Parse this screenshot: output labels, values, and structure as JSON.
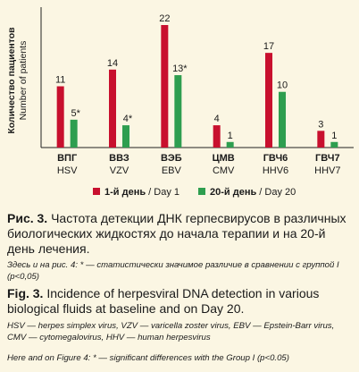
{
  "chart_data": {
    "type": "bar",
    "ylabel_ru": "Количество пациентов",
    "ylabel_en": "Number of patients",
    "categories_ru": [
      "ВПГ",
      "ВВЗ",
      "ВЭБ",
      "ЦМВ",
      "ГВЧ6",
      "ГВЧ7"
    ],
    "categories_en": [
      "HSV",
      "VZV",
      "EBV",
      "CMV",
      "HHV6",
      "HHV7"
    ],
    "series": [
      {
        "name_ru": "1-й день",
        "name_en": "Day 1",
        "color": "#c8102e",
        "values": [
          11,
          14,
          22,
          4,
          17,
          3
        ],
        "labels": [
          "11",
          "14",
          "22",
          "4",
          "17",
          "3"
        ]
      },
      {
        "name_ru": "20-й день",
        "name_en": "Day 20",
        "color": "#2e9e4f",
        "values": [
          5,
          4,
          13,
          1,
          10,
          1
        ],
        "labels": [
          "5*",
          "4*",
          "13*",
          "1",
          "10",
          "1"
        ]
      }
    ],
    "ylim": [
      0,
      22
    ],
    "grid": false,
    "legend_position": "bottom"
  },
  "caption": {
    "ru_label": "Рис. 3.",
    "ru_text": " Частота детекции ДНК герпесвирусов в различных биологических жидкостях до начала терапии и на 20-й день лечения.",
    "ru_note": "Здесь и на рис. 4: * — статистически значимое различие в сравнении с группой I (р<0,05)",
    "en_label": "Fig. 3.",
    "en_text": " Incidence of herpesviral DNA detection in various biological fluids at baseline and on Day 20.",
    "en_note1": "HSV — herpes simplex virus, VZV — varicella zoster virus, EBV — Epstein-Barr virus, CMV — cytomegalovirus, HHV — human herpesvirus",
    "en_note2": "Here and on Figure 4: * — significant differences with the Group I (p<0.05)"
  }
}
